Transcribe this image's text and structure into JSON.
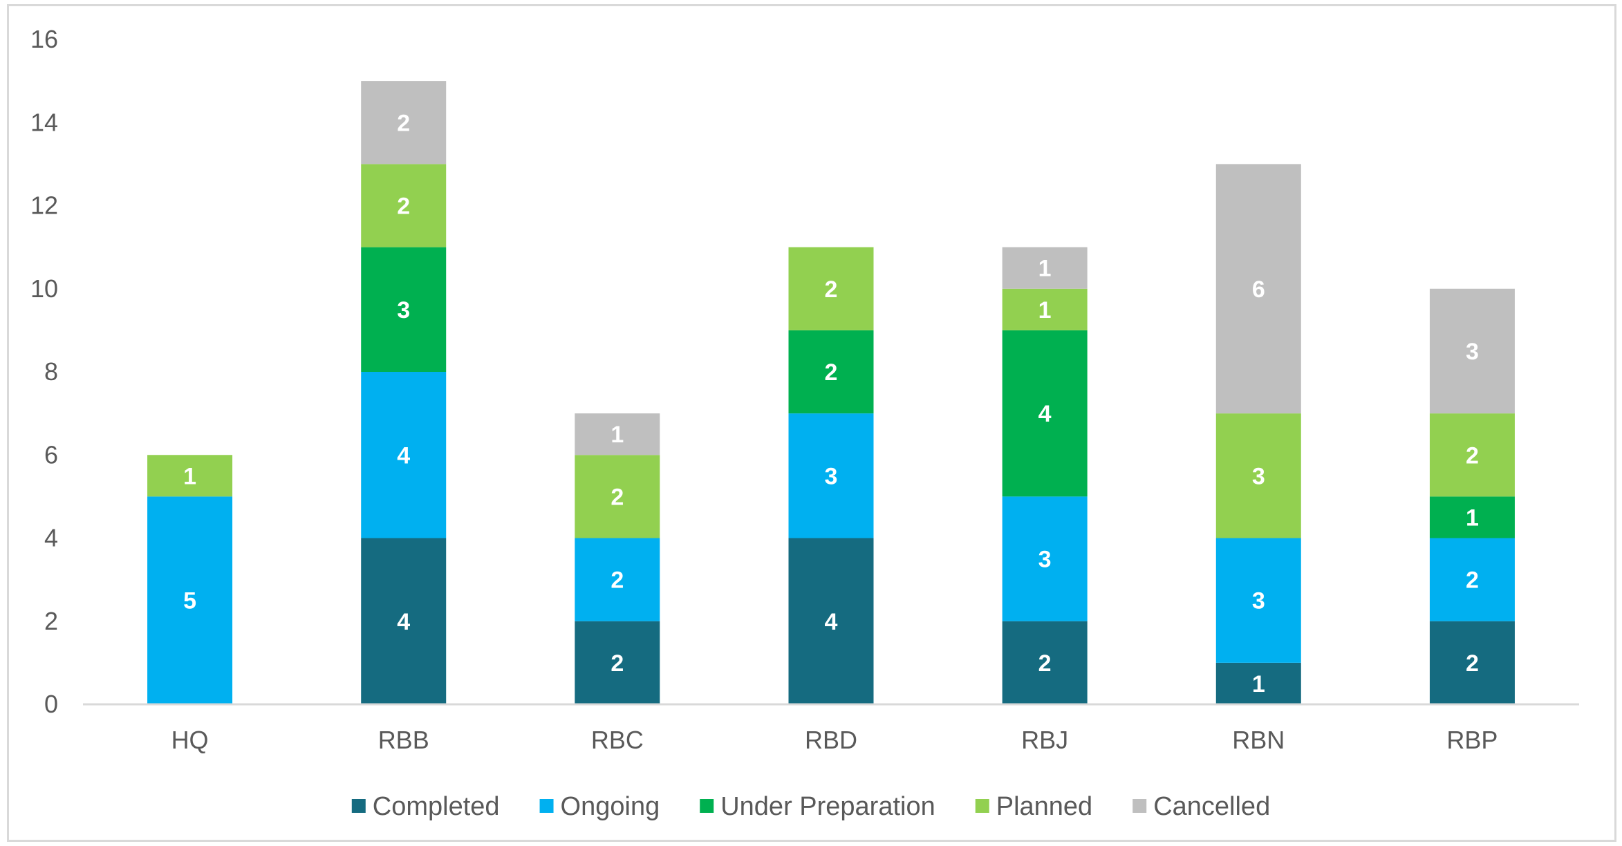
{
  "chart_data": {
    "type": "bar",
    "stacked": true,
    "categories": [
      "HQ",
      "RBB",
      "RBC",
      "RBD",
      "RBJ",
      "RBN",
      "RBP"
    ],
    "series": [
      {
        "name": "Completed",
        "color": "#156b80",
        "values": [
          0,
          4,
          2,
          4,
          2,
          1,
          2
        ]
      },
      {
        "name": "Ongoing",
        "color": "#00b0f0",
        "values": [
          5,
          4,
          2,
          3,
          3,
          3,
          2
        ]
      },
      {
        "name": "Under Preparation",
        "color": "#00b050",
        "values": [
          0,
          3,
          0,
          2,
          4,
          0,
          1
        ]
      },
      {
        "name": "Planned",
        "color": "#92d050",
        "values": [
          1,
          2,
          2,
          2,
          1,
          3,
          2
        ]
      },
      {
        "name": "Cancelled",
        "color": "#bfbfbf",
        "values": [
          0,
          2,
          1,
          0,
          1,
          6,
          3
        ]
      }
    ],
    "ylim": [
      0,
      16
    ],
    "yticks": [
      "0",
      "2",
      "4",
      "6",
      "8",
      "10",
      "12",
      "14",
      "16"
    ],
    "grid": false,
    "legend_position": "bottom",
    "data_labels": true
  }
}
